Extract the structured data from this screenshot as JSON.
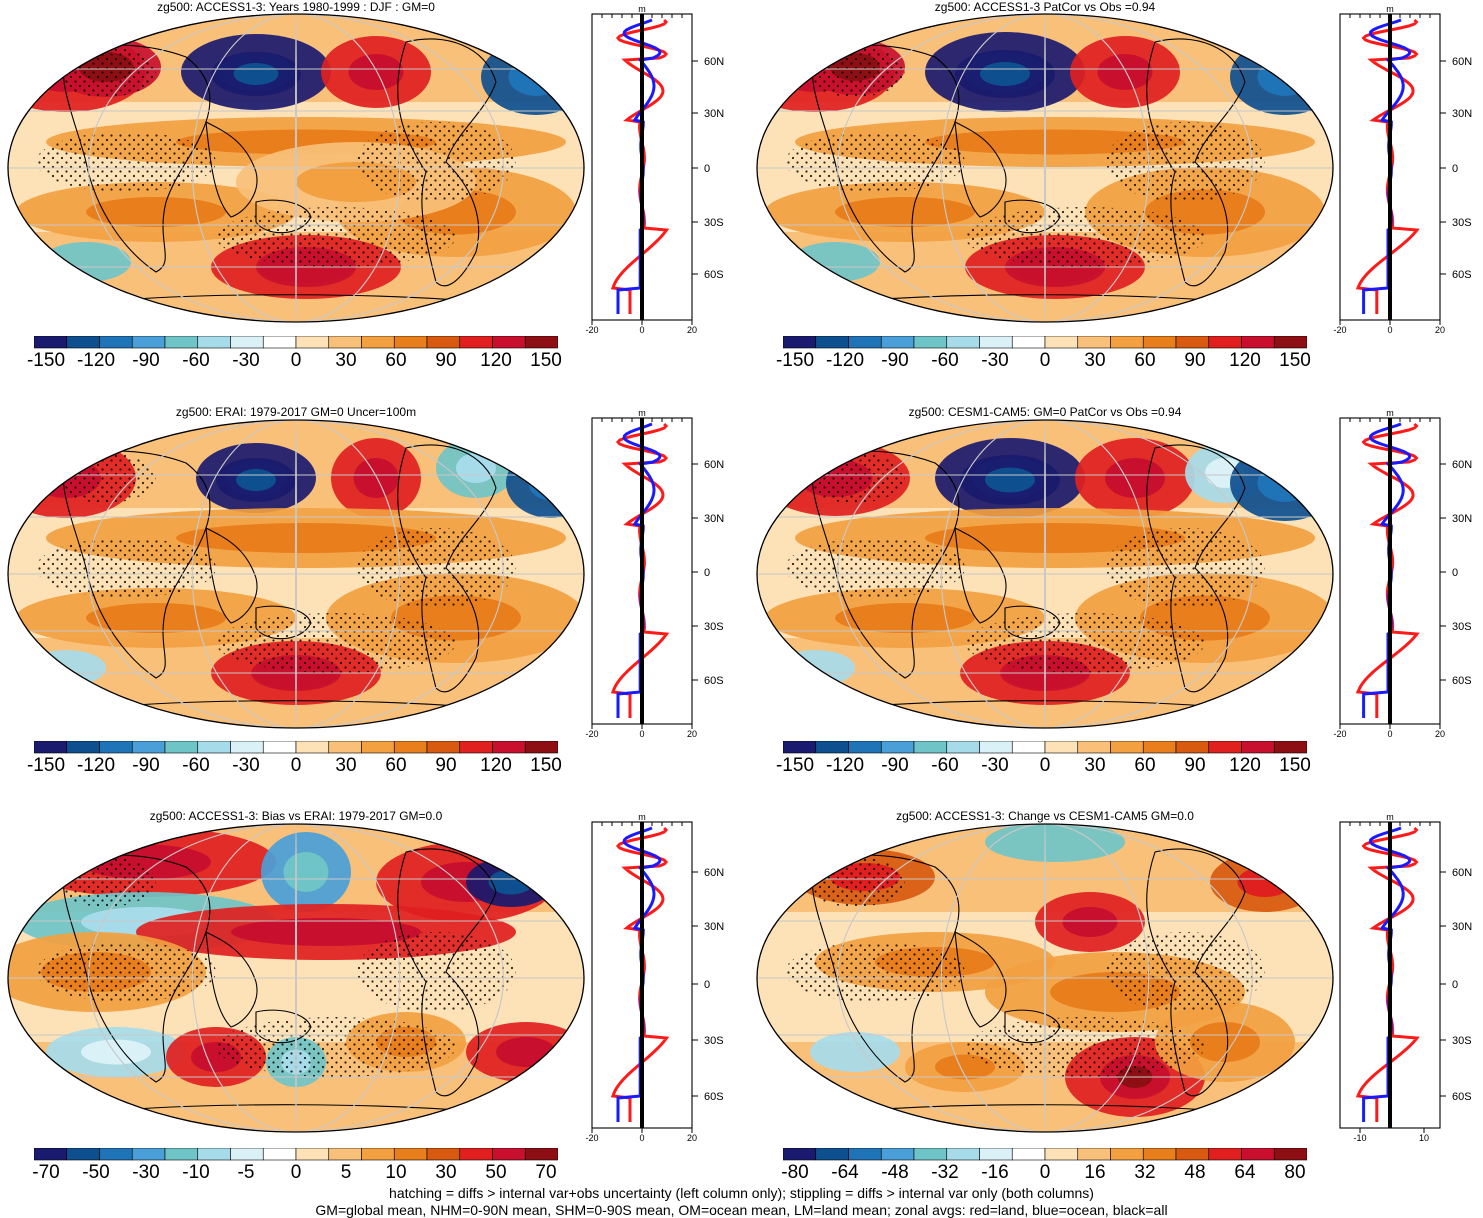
{
  "palette": [
    "#1a1a6e",
    "#0e4f8f",
    "#1f74b8",
    "#4a9fd8",
    "#6fc4c8",
    "#a6dcea",
    "#d9f1f7",
    "#ffffff",
    "#fde2b8",
    "#f9c07a",
    "#f2a040",
    "#e87f1c",
    "#d85a10",
    "#e01f1f",
    "#c8102e",
    "#8e0f13"
  ],
  "latitude_labels": [
    "60N",
    "30N",
    "0",
    "30S",
    "60S"
  ],
  "profile_units": "m",
  "panels": [
    {
      "id": "access-djf",
      "title": "zg500: ACCESS1-3: Years 1980-1999 : DJF : GM=0",
      "profile_ticks": [
        "-20",
        "0",
        "20"
      ],
      "colorbar_labels": [
        "-150",
        "-120",
        "-90",
        "-60",
        "-30",
        "0",
        "30",
        "60",
        "90",
        "120",
        "150"
      ]
    },
    {
      "id": "access-patcor",
      "title": "zg500: ACCESS1-3 PatCor vs Obs =0.94",
      "profile_ticks": [
        "-20",
        "0",
        "20"
      ],
      "colorbar_labels": [
        "-150",
        "-120",
        "-90",
        "-60",
        "-30",
        "0",
        "30",
        "60",
        "90",
        "120",
        "150"
      ]
    },
    {
      "id": "erai",
      "title": "zg500: ERAI: 1979-2017 GM=0 Uncer=100m",
      "profile_ticks": [
        "-20",
        "0",
        "20"
      ],
      "colorbar_labels": [
        "-150",
        "-120",
        "-90",
        "-60",
        "-30",
        "0",
        "30",
        "60",
        "90",
        "120",
        "150"
      ]
    },
    {
      "id": "cesm-patcor",
      "title": "zg500: CESM1-CAM5: GM=0 PatCor vs Obs =0.94",
      "profile_ticks": [
        "-20",
        "0",
        "20"
      ],
      "colorbar_labels": [
        "-150",
        "-120",
        "-90",
        "-60",
        "-30",
        "0",
        "30",
        "60",
        "90",
        "120",
        "150"
      ]
    },
    {
      "id": "access-bias",
      "title": "zg500: ACCESS1-3: Bias vs ERAI: 1979-2017 GM=0.0",
      "profile_ticks": [
        "-20",
        "0",
        "20"
      ],
      "colorbar_labels": [
        "-70",
        "-50",
        "-30",
        "-10",
        "-5",
        "0",
        "5",
        "10",
        "30",
        "50",
        "70"
      ]
    },
    {
      "id": "access-change",
      "title": "zg500: ACCESS1-3: Change vs CESM1-CAM5 GM=0.0",
      "profile_ticks": [
        "-10",
        "10"
      ],
      "colorbar_labels": [
        "-80",
        "-64",
        "-48",
        "-32",
        "-16",
        "0",
        "16",
        "32",
        "48",
        "64",
        "80"
      ]
    }
  ],
  "footer": {
    "line1": "hatching = diffs > internal var+obs uncertainty (left column only); stippling = diffs > internal var only (both columns)",
    "line2": "GM=global mean, NHM=0-90N mean, SHM=0-90S mean, OM=ocean mean, LM=land mean; zonal avgs: red=land, blue=ocean, black=all"
  }
}
